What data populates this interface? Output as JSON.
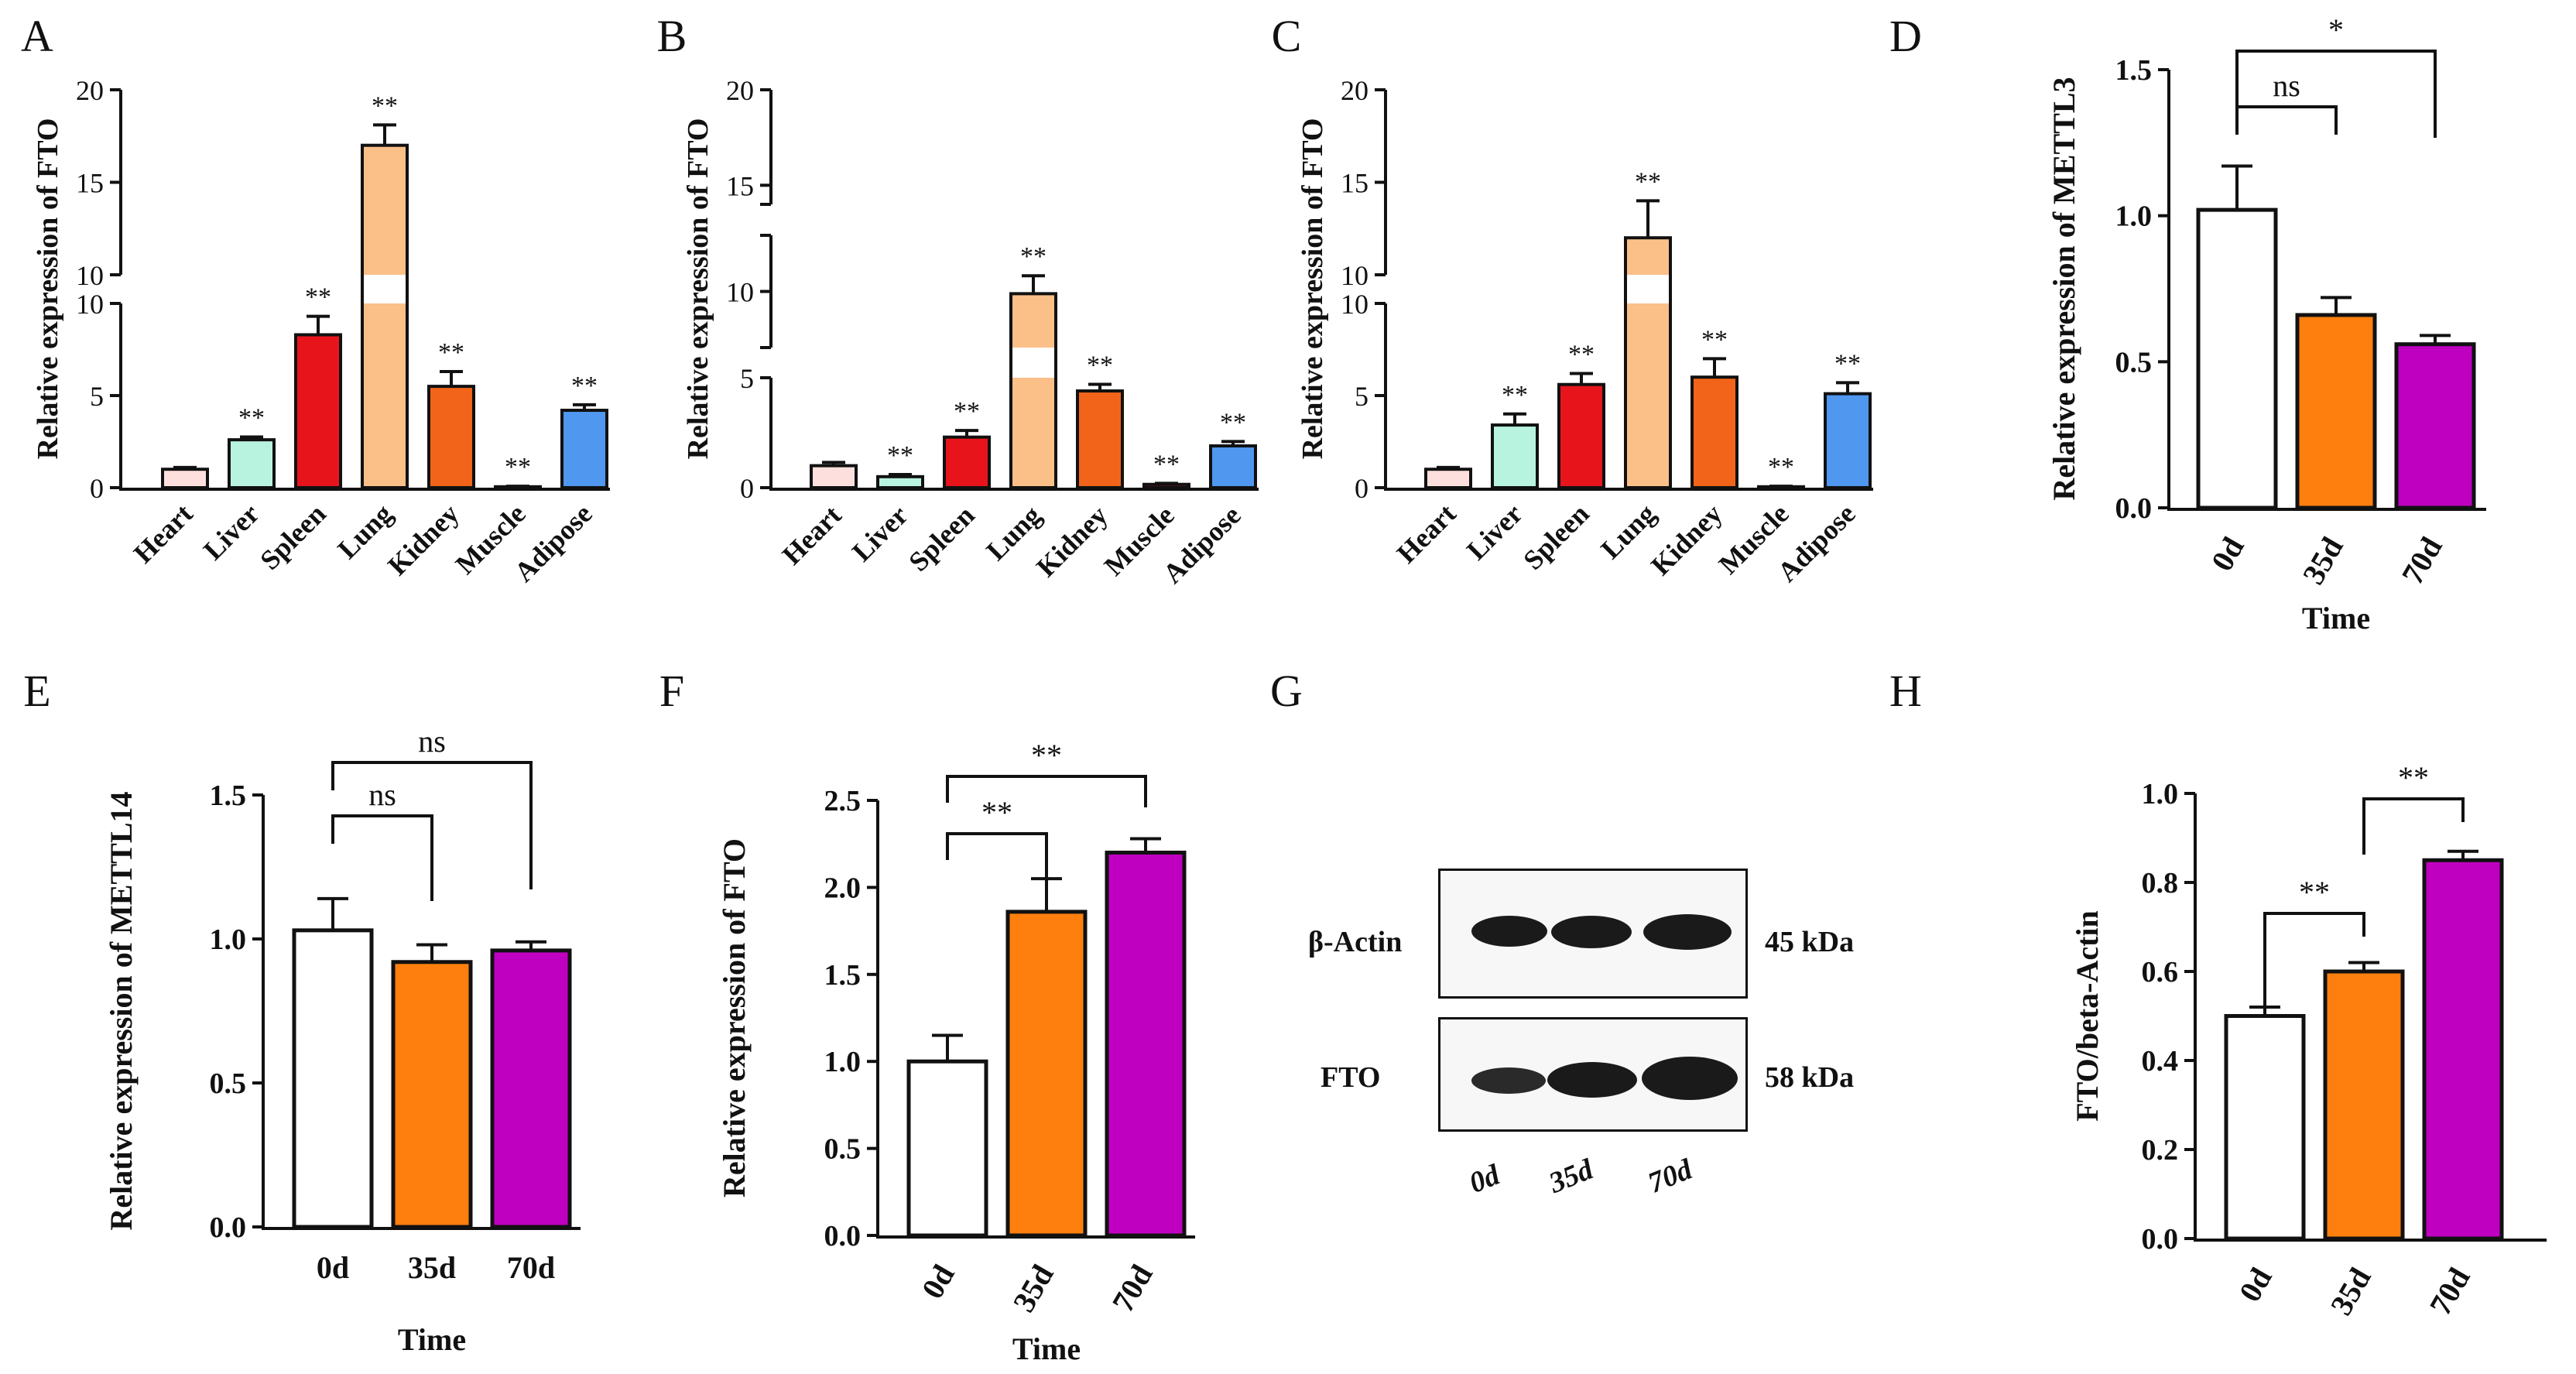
{
  "colors": {
    "heart": "#fde0dd",
    "liver": "#b8f3e0",
    "spleen": "#e8141c",
    "lung": "#fbbf88",
    "kidney": "#f26419",
    "muscle": "#c8102e",
    "adipose": "#4f97ef",
    "d0": "#ffffff",
    "d35": "#ff7f0e",
    "d70": "#c000c0",
    "axis": "#111111"
  },
  "chart_data": [
    {
      "panel": "A",
      "type": "bar",
      "ylabel": "Relative expression of FTO",
      "categories": [
        "Heart",
        "Liver",
        "Spleen",
        "Lung",
        "Kidney",
        "Muscle",
        "Adipose"
      ],
      "values": [
        1.0,
        2.6,
        8.3,
        17.0,
        5.5,
        0.05,
        4.2
      ],
      "errors": [
        0.1,
        0.15,
        1.0,
        1.1,
        0.8,
        0.03,
        0.3
      ],
      "significance": [
        "",
        "**",
        "**",
        "**",
        "**",
        "**",
        "**"
      ],
      "y_break": {
        "lower": [
          0,
          10
        ],
        "upper": [
          10,
          20
        ]
      },
      "lower_ticks": [
        "0",
        "5",
        "10"
      ],
      "upper_ticks": [
        "10",
        "15",
        "20"
      ]
    },
    {
      "panel": "B",
      "type": "bar",
      "ylabel": "Relative expression of FTO",
      "categories": [
        "Heart",
        "Liver",
        "Spleen",
        "Lung",
        "Kidney",
        "Muscle",
        "Adipose"
      ],
      "values": [
        1.0,
        0.5,
        2.3,
        9.9,
        4.4,
        0.15,
        1.9
      ],
      "errors": [
        0.15,
        0.1,
        0.3,
        0.8,
        0.3,
        0.05,
        0.2
      ],
      "significance": [
        "",
        "**",
        "**",
        "**",
        "**",
        "**",
        "**"
      ],
      "y_breaks": [
        {
          "range": [
            0,
            5
          ]
        },
        {
          "range": [
            7.5,
            12.5
          ]
        },
        {
          "range": [
            14,
            20
          ]
        }
      ],
      "ticks": [
        "0",
        "5",
        "10",
        "15",
        "20"
      ]
    },
    {
      "panel": "C",
      "type": "bar",
      "ylabel": "Relative expression of FTO",
      "categories": [
        "Heart",
        "Liver",
        "Spleen",
        "Lung",
        "Kidney",
        "Muscle",
        "Adipose"
      ],
      "values": [
        1.0,
        3.4,
        5.6,
        12.0,
        6.0,
        0.05,
        5.1
      ],
      "errors": [
        0.1,
        0.6,
        0.6,
        2.0,
        1.0,
        0.03,
        0.6
      ],
      "significance": [
        "",
        "**",
        "**",
        "**",
        "**",
        "**",
        "**"
      ],
      "y_break": {
        "lower": [
          0,
          10
        ],
        "upper": [
          10,
          20
        ]
      },
      "lower_ticks": [
        "0",
        "5",
        "10"
      ],
      "upper_ticks": [
        "10",
        "15",
        "20"
      ]
    },
    {
      "panel": "D",
      "type": "bar",
      "ylabel": "Relative expression of METTL3",
      "xlabel": "Time",
      "categories": [
        "0d",
        "35d",
        "70d"
      ],
      "values": [
        1.02,
        0.66,
        0.56
      ],
      "errors": [
        0.15,
        0.06,
        0.03
      ],
      "ylim": [
        0,
        1.5
      ],
      "ticks": [
        "0.0",
        "0.5",
        "1.0",
        "1.5"
      ],
      "comparisons": [
        {
          "from": "0d",
          "to": "35d",
          "label": "ns"
        },
        {
          "from": "0d",
          "to": "70d",
          "label": "*"
        }
      ]
    },
    {
      "panel": "E",
      "type": "bar",
      "ylabel": "Relative expression of METTL14",
      "xlabel": "Time",
      "categories": [
        "0d",
        "35d",
        "70d"
      ],
      "values": [
        1.03,
        0.92,
        0.96
      ],
      "errors": [
        0.11,
        0.06,
        0.03
      ],
      "ylim": [
        0,
        1.5
      ],
      "ticks": [
        "0.0",
        "0.5",
        "1.0",
        "1.5"
      ],
      "comparisons": [
        {
          "from": "0d",
          "to": "35d",
          "label": "ns"
        },
        {
          "from": "0d",
          "to": "70d",
          "label": "ns"
        }
      ]
    },
    {
      "panel": "F",
      "type": "bar",
      "ylabel": "Relative expression of FTO",
      "xlabel": "Time",
      "categories": [
        "0d",
        "35d",
        "70d"
      ],
      "values": [
        1.0,
        1.86,
        2.2
      ],
      "errors": [
        0.15,
        0.19,
        0.08
      ],
      "ylim": [
        0,
        2.5
      ],
      "ticks": [
        "0.0",
        "0.5",
        "1.0",
        "1.5",
        "2.0",
        "2.5"
      ],
      "comparisons": [
        {
          "from": "0d",
          "to": "35d",
          "label": "**"
        },
        {
          "from": "0d",
          "to": "70d",
          "label": "**"
        }
      ]
    },
    {
      "panel": "H",
      "type": "bar",
      "ylabel": "FTO/beta-Actin",
      "categories": [
        "0d",
        "35d",
        "70d"
      ],
      "values": [
        0.5,
        0.6,
        0.85
      ],
      "errors": [
        0.02,
        0.02,
        0.02
      ],
      "ylim": [
        0,
        1.0
      ],
      "ticks": [
        "0.0",
        "0.2",
        "0.4",
        "0.6",
        "0.8",
        "1.0"
      ],
      "comparisons": [
        {
          "from": "0d",
          "to": "35d",
          "label": "**"
        },
        {
          "from": "35d",
          "to": "70d",
          "label": "**"
        }
      ]
    }
  ],
  "blot": {
    "panel": "G",
    "rows": [
      {
        "protein": "β-Actin",
        "size": "45 kDa"
      },
      {
        "protein": "FTO",
        "size": "58 kDa"
      }
    ],
    "lanes": [
      "0d",
      "35d",
      "70d"
    ]
  }
}
